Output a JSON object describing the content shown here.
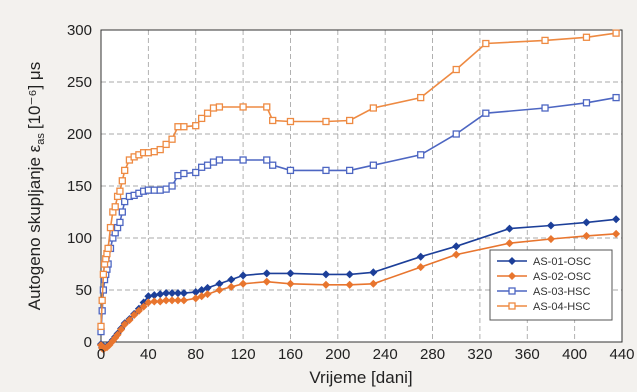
{
  "chart_data": {
    "type": "line",
    "xlabel": "Vrijeme [dani]",
    "ylabel": "Autogeno skupljanje ε",
    "ylabel_sub": "as",
    "ylabel_unit": "[10⁻⁶] μs",
    "xlim": [
      0,
      440
    ],
    "ylim": [
      0,
      300
    ],
    "x_ticks": [
      0,
      40,
      80,
      120,
      160,
      200,
      240,
      280,
      320,
      360,
      400,
      440
    ],
    "y_ticks": [
      0,
      50,
      100,
      150,
      200,
      250,
      300
    ],
    "grid": true,
    "legend_position": "bottom-right",
    "series": [
      {
        "name": "AS-01-OSC",
        "color": "#1c3f99",
        "marker": "diamond",
        "x": [
          0,
          1,
          2,
          3,
          5,
          7,
          10,
          12,
          14,
          17,
          20,
          24,
          28,
          32,
          36,
          40,
          45,
          50,
          55,
          60,
          65,
          70,
          80,
          85,
          90,
          100,
          110,
          120,
          140,
          160,
          190,
          210,
          230,
          270,
          300,
          345,
          380,
          410,
          435
        ],
        "y": [
          -2,
          -5,
          -6,
          -5,
          -4,
          -2,
          2,
          5,
          8,
          13,
          18,
          22,
          27,
          32,
          38,
          44,
          45,
          46,
          47,
          47,
          47,
          47,
          48,
          50,
          52,
          56,
          60,
          64,
          66,
          66,
          65,
          65,
          67,
          82,
          92,
          109,
          112,
          115,
          118
        ]
      },
      {
        "name": "AS-02-OSC",
        "color": "#e8752e",
        "marker": "diamond",
        "x": [
          0,
          1,
          2,
          3,
          5,
          7,
          10,
          12,
          14,
          17,
          20,
          24,
          28,
          32,
          36,
          40,
          45,
          50,
          55,
          60,
          65,
          70,
          80,
          85,
          90,
          100,
          110,
          120,
          140,
          160,
          190,
          210,
          230,
          270,
          300,
          345,
          380,
          410,
          435
        ],
        "y": [
          -3,
          -6,
          -7,
          -6,
          -5,
          -3,
          1,
          4,
          7,
          12,
          17,
          21,
          26,
          30,
          34,
          38,
          39,
          39,
          40,
          40,
          40,
          40,
          42,
          44,
          46,
          50,
          53,
          56,
          58,
          56,
          55,
          55,
          56,
          72,
          84,
          95,
          99,
          102,
          104
        ]
      },
      {
        "name": "AS-03-HSC",
        "color": "#4d66c2",
        "marker": "square",
        "x": [
          0,
          1,
          2,
          3,
          4,
          5,
          6,
          8,
          10,
          12,
          14,
          16,
          18,
          20,
          24,
          28,
          32,
          36,
          40,
          45,
          50,
          55,
          60,
          65,
          70,
          80,
          85,
          90,
          95,
          100,
          120,
          140,
          145,
          160,
          190,
          210,
          230,
          270,
          300,
          325,
          375,
          410,
          435
        ],
        "y": [
          10,
          30,
          50,
          60,
          65,
          70,
          75,
          90,
          100,
          105,
          110,
          115,
          125,
          135,
          140,
          141,
          143,
          145,
          146,
          146,
          146,
          147,
          150,
          160,
          162,
          163,
          168,
          170,
          173,
          175,
          175,
          175,
          170,
          165,
          165,
          165,
          170,
          180,
          200,
          220,
          225,
          230,
          235
        ]
      },
      {
        "name": "AS-04-HSC",
        "color": "#ee8a42",
        "marker": "square",
        "x": [
          0,
          1,
          2,
          3,
          4,
          5,
          6,
          8,
          10,
          12,
          14,
          16,
          18,
          20,
          24,
          28,
          32,
          36,
          40,
          45,
          50,
          55,
          60,
          65,
          70,
          80,
          85,
          90,
          95,
          100,
          120,
          140,
          145,
          160,
          190,
          210,
          230,
          270,
          300,
          325,
          375,
          410,
          435
        ],
        "y": [
          15,
          40,
          65,
          75,
          80,
          85,
          90,
          110,
          125,
          130,
          140,
          145,
          155,
          165,
          175,
          178,
          180,
          182,
          182,
          183,
          185,
          190,
          195,
          207,
          207,
          208,
          215,
          220,
          225,
          226,
          226,
          226,
          213,
          212,
          212,
          213,
          225,
          235,
          262,
          287,
          290,
          293,
          297
        ]
      }
    ]
  }
}
